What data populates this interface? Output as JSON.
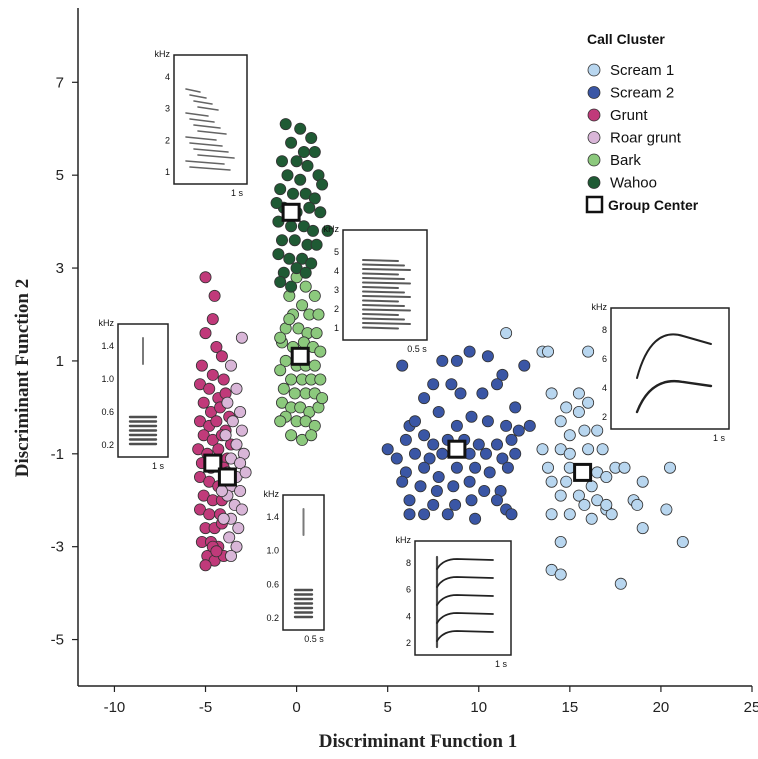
{
  "chart_data": {
    "type": "scatter",
    "xlabel": "Discriminant Function 1",
    "ylabel": "Discriminant Function 2",
    "xlim": [
      -12,
      25
    ],
    "ylim": [
      -6,
      8.6
    ],
    "x_ticks": [
      -10,
      -5,
      0,
      5,
      10,
      15,
      20,
      25
    ],
    "x_tick_labels": [
      "-10",
      "-5",
      "0",
      "5",
      "10",
      "15",
      "20",
      "25"
    ],
    "y_ticks": [
      -5,
      -3,
      -1,
      1,
      3,
      5,
      7
    ],
    "y_tick_labels": [
      "-5",
      "-3",
      "-1",
      "1",
      "3",
      "5",
      "7"
    ],
    "grid": false,
    "legend": {
      "title": "Call Cluster",
      "placement": "top-right",
      "group_center_label": "Group Center"
    },
    "series": [
      {
        "name": "Scream 1",
        "color": "#b8d6ef",
        "points": [
          [
            11.5,
            1.6
          ],
          [
            13.5,
            1.2
          ],
          [
            13.8,
            1.2
          ],
          [
            16.0,
            1.2
          ],
          [
            14.0,
            0.3
          ],
          [
            15.5,
            0.3
          ],
          [
            16.0,
            0.1
          ],
          [
            14.8,
            0.0
          ],
          [
            15.5,
            -0.1
          ],
          [
            14.5,
            -0.3
          ],
          [
            15.0,
            -0.6
          ],
          [
            16.5,
            -0.5
          ],
          [
            15.8,
            -0.5
          ],
          [
            13.5,
            -0.9
          ],
          [
            14.5,
            -0.9
          ],
          [
            15.0,
            -1.0
          ],
          [
            16.0,
            -0.9
          ],
          [
            16.8,
            -0.9
          ],
          [
            13.8,
            -1.3
          ],
          [
            15.0,
            -1.3
          ],
          [
            16.5,
            -1.4
          ],
          [
            17.5,
            -1.3
          ],
          [
            18.0,
            -1.3
          ],
          [
            20.5,
            -1.3
          ],
          [
            14.0,
            -1.6
          ],
          [
            14.8,
            -1.6
          ],
          [
            16.2,
            -1.7
          ],
          [
            17.0,
            -1.5
          ],
          [
            19.0,
            -1.6
          ],
          [
            14.5,
            -1.9
          ],
          [
            15.5,
            -1.9
          ],
          [
            15.8,
            -2.1
          ],
          [
            16.5,
            -2.0
          ],
          [
            17.0,
            -2.2
          ],
          [
            18.5,
            -2.0
          ],
          [
            14.0,
            -2.3
          ],
          [
            15.0,
            -2.3
          ],
          [
            16.2,
            -2.4
          ],
          [
            17.3,
            -2.3
          ],
          [
            18.7,
            -2.1
          ],
          [
            20.3,
            -2.2
          ],
          [
            17.0,
            -2.1
          ],
          [
            14.5,
            -2.9
          ],
          [
            19.0,
            -2.6
          ],
          [
            21.2,
            -2.9
          ],
          [
            14.0,
            -3.5
          ],
          [
            14.5,
            -3.6
          ],
          [
            17.8,
            -3.8
          ]
        ]
      },
      {
        "name": "Scream 2",
        "color": "#3a56a5",
        "points": [
          [
            5.8,
            0.9
          ],
          [
            6.2,
            -0.4
          ],
          [
            7.5,
            0.5
          ],
          [
            8.0,
            1.0
          ],
          [
            8.8,
            1.0
          ],
          [
            9.5,
            1.2
          ],
          [
            10.5,
            1.1
          ],
          [
            11.3,
            0.7
          ],
          [
            12.5,
            0.9
          ],
          [
            7.0,
            0.2
          ],
          [
            8.5,
            0.5
          ],
          [
            9.0,
            0.3
          ],
          [
            10.2,
            0.3
          ],
          [
            11.0,
            0.5
          ],
          [
            12.0,
            0.0
          ],
          [
            6.5,
            -0.3
          ],
          [
            7.8,
            -0.1
          ],
          [
            8.8,
            -0.4
          ],
          [
            9.6,
            -0.2
          ],
          [
            10.5,
            -0.3
          ],
          [
            11.5,
            -0.4
          ],
          [
            12.8,
            -0.4
          ],
          [
            5.0,
            -0.9
          ],
          [
            6.0,
            -0.7
          ],
          [
            7.0,
            -0.6
          ],
          [
            7.5,
            -0.8
          ],
          [
            8.3,
            -0.7
          ],
          [
            9.2,
            -0.7
          ],
          [
            10.0,
            -0.8
          ],
          [
            11.0,
            -0.8
          ],
          [
            11.8,
            -0.7
          ],
          [
            12.2,
            -0.5
          ],
          [
            5.5,
            -1.1
          ],
          [
            6.5,
            -1.0
          ],
          [
            7.3,
            -1.1
          ],
          [
            8.0,
            -1.0
          ],
          [
            9.5,
            -1.0
          ],
          [
            10.4,
            -1.0
          ],
          [
            11.3,
            -1.1
          ],
          [
            12.0,
            -1.0
          ],
          [
            6.0,
            -1.4
          ],
          [
            7.0,
            -1.3
          ],
          [
            7.8,
            -1.5
          ],
          [
            8.8,
            -1.3
          ],
          [
            9.8,
            -1.3
          ],
          [
            10.6,
            -1.4
          ],
          [
            11.6,
            -1.3
          ],
          [
            5.8,
            -1.6
          ],
          [
            6.8,
            -1.7
          ],
          [
            7.7,
            -1.8
          ],
          [
            8.6,
            -1.7
          ],
          [
            9.5,
            -1.6
          ],
          [
            10.3,
            -1.8
          ],
          [
            11.2,
            -1.8
          ],
          [
            6.2,
            -2.0
          ],
          [
            7.5,
            -2.1
          ],
          [
            8.7,
            -2.1
          ],
          [
            9.6,
            -2.0
          ],
          [
            11.0,
            -2.0
          ],
          [
            11.5,
            -2.2
          ],
          [
            6.2,
            -2.3
          ],
          [
            7.0,
            -2.3
          ],
          [
            8.3,
            -2.3
          ],
          [
            9.8,
            -2.4
          ],
          [
            11.8,
            -2.3
          ]
        ]
      },
      {
        "name": "Grunt",
        "color": "#c03a7a",
        "points": [
          [
            -5.0,
            2.8
          ],
          [
            -4.5,
            2.4
          ],
          [
            -4.6,
            1.9
          ],
          [
            -5.0,
            1.6
          ],
          [
            -4.4,
            1.3
          ],
          [
            -4.1,
            1.1
          ],
          [
            -5.2,
            0.9
          ],
          [
            -4.6,
            0.7
          ],
          [
            -4.0,
            0.6
          ],
          [
            -5.3,
            0.5
          ],
          [
            -4.8,
            0.4
          ],
          [
            -4.3,
            0.2
          ],
          [
            -3.9,
            0.3
          ],
          [
            -5.1,
            0.1
          ],
          [
            -4.7,
            -0.1
          ],
          [
            -4.2,
            0.0
          ],
          [
            -3.7,
            -0.2
          ],
          [
            -5.3,
            -0.3
          ],
          [
            -4.8,
            -0.4
          ],
          [
            -4.4,
            -0.3
          ],
          [
            -3.9,
            -0.5
          ],
          [
            -5.1,
            -0.6
          ],
          [
            -4.6,
            -0.7
          ],
          [
            -4.1,
            -0.6
          ],
          [
            -3.6,
            -0.8
          ],
          [
            -5.4,
            -0.9
          ],
          [
            -4.9,
            -1.0
          ],
          [
            -4.3,
            -0.9
          ],
          [
            -3.8,
            -1.1
          ],
          [
            -5.2,
            -1.2
          ],
          [
            -4.7,
            -1.3
          ],
          [
            -4.0,
            -1.3
          ],
          [
            -5.3,
            -1.5
          ],
          [
            -4.8,
            -1.6
          ],
          [
            -4.3,
            -1.7
          ],
          [
            -3.8,
            -1.6
          ],
          [
            -5.1,
            -1.9
          ],
          [
            -4.6,
            -2.0
          ],
          [
            -4.1,
            -2.0
          ],
          [
            -5.3,
            -2.2
          ],
          [
            -4.8,
            -2.3
          ],
          [
            -4.2,
            -2.3
          ],
          [
            -5.0,
            -2.6
          ],
          [
            -4.5,
            -2.6
          ],
          [
            -4.1,
            -2.5
          ],
          [
            -5.2,
            -2.9
          ],
          [
            -4.7,
            -2.9
          ],
          [
            -4.3,
            -3.0
          ],
          [
            -4.9,
            -3.2
          ],
          [
            -4.5,
            -3.3
          ],
          [
            -4.0,
            -3.2
          ],
          [
            -4.6,
            -3.0
          ],
          [
            -5.0,
            -3.4
          ],
          [
            -4.4,
            -3.1
          ]
        ]
      },
      {
        "name": "Roar grunt",
        "color": "#d9b6d8",
        "points": [
          [
            -3.0,
            1.5
          ],
          [
            -3.6,
            0.9
          ],
          [
            -3.3,
            0.4
          ],
          [
            -3.8,
            0.1
          ],
          [
            -3.1,
            -0.1
          ],
          [
            -3.5,
            -0.3
          ],
          [
            -3.0,
            -0.5
          ],
          [
            -3.9,
            -0.6
          ],
          [
            -3.3,
            -0.8
          ],
          [
            -2.9,
            -1.0
          ],
          [
            -3.6,
            -1.1
          ],
          [
            -3.1,
            -1.2
          ],
          [
            -3.8,
            -1.4
          ],
          [
            -3.3,
            -1.5
          ],
          [
            -2.8,
            -1.4
          ],
          [
            -3.6,
            -1.7
          ],
          [
            -3.1,
            -1.8
          ],
          [
            -3.8,
            -1.9
          ],
          [
            -3.4,
            -2.1
          ],
          [
            -3.0,
            -2.2
          ],
          [
            -3.6,
            -2.4
          ],
          [
            -3.2,
            -2.6
          ],
          [
            -3.7,
            -2.8
          ],
          [
            -3.3,
            -3.0
          ],
          [
            -3.6,
            -3.2
          ],
          [
            -4.0,
            -2.4
          ],
          [
            -4.1,
            -1.8
          ]
        ]
      },
      {
        "name": "Bark",
        "color": "#8cc97d",
        "points": [
          [
            0.0,
            2.8
          ],
          [
            0.5,
            2.6
          ],
          [
            1.0,
            2.4
          ],
          [
            -0.4,
            2.4
          ],
          [
            0.3,
            2.2
          ],
          [
            0.7,
            2.0
          ],
          [
            -0.2,
            2.0
          ],
          [
            1.2,
            2.0
          ],
          [
            -0.6,
            1.7
          ],
          [
            0.1,
            1.7
          ],
          [
            0.6,
            1.6
          ],
          [
            1.1,
            1.6
          ],
          [
            -0.8,
            1.4
          ],
          [
            -0.2,
            1.3
          ],
          [
            0.4,
            1.4
          ],
          [
            0.9,
            1.3
          ],
          [
            1.3,
            1.2
          ],
          [
            -0.6,
            1.0
          ],
          [
            0.0,
            0.9
          ],
          [
            0.5,
            0.9
          ],
          [
            1.0,
            0.9
          ],
          [
            -0.9,
            0.8
          ],
          [
            -0.3,
            0.6
          ],
          [
            0.3,
            0.6
          ],
          [
            0.8,
            0.6
          ],
          [
            1.3,
            0.6
          ],
          [
            -0.7,
            0.4
          ],
          [
            -0.1,
            0.3
          ],
          [
            0.5,
            0.3
          ],
          [
            1.0,
            0.3
          ],
          [
            -0.8,
            0.1
          ],
          [
            -0.3,
            0.0
          ],
          [
            0.2,
            0.0
          ],
          [
            0.7,
            -0.1
          ],
          [
            1.2,
            0.0
          ],
          [
            -0.6,
            -0.2
          ],
          [
            0.0,
            -0.3
          ],
          [
            0.5,
            -0.3
          ],
          [
            1.0,
            -0.4
          ],
          [
            -0.3,
            -0.6
          ],
          [
            0.3,
            -0.7
          ],
          [
            0.8,
            -0.6
          ],
          [
            -0.9,
            -0.3
          ],
          [
            -0.4,
            1.9
          ],
          [
            -0.9,
            1.5
          ],
          [
            1.4,
            0.2
          ]
        ]
      },
      {
        "name": "Wahoo",
        "color": "#1f5a34",
        "points": [
          [
            -0.6,
            6.1
          ],
          [
            0.2,
            6.0
          ],
          [
            0.8,
            5.8
          ],
          [
            -0.3,
            5.7
          ],
          [
            0.4,
            5.5
          ],
          [
            -0.8,
            5.3
          ],
          [
            1.0,
            5.5
          ],
          [
            0.0,
            5.3
          ],
          [
            0.6,
            5.2
          ],
          [
            -0.5,
            5.0
          ],
          [
            0.2,
            4.9
          ],
          [
            1.2,
            5.0
          ],
          [
            -0.9,
            4.7
          ],
          [
            -0.2,
            4.6
          ],
          [
            0.5,
            4.6
          ],
          [
            1.0,
            4.5
          ],
          [
            -0.7,
            4.3
          ],
          [
            0.0,
            4.2
          ],
          [
            0.7,
            4.3
          ],
          [
            1.3,
            4.2
          ],
          [
            -1.0,
            4.0
          ],
          [
            -0.3,
            3.9
          ],
          [
            0.4,
            3.9
          ],
          [
            0.9,
            3.8
          ],
          [
            -0.8,
            3.6
          ],
          [
            -0.1,
            3.6
          ],
          [
            0.6,
            3.5
          ],
          [
            1.1,
            3.5
          ],
          [
            -1.0,
            3.3
          ],
          [
            -0.4,
            3.2
          ],
          [
            0.3,
            3.2
          ],
          [
            0.8,
            3.1
          ],
          [
            -0.7,
            2.9
          ],
          [
            0.0,
            3.0
          ],
          [
            0.5,
            2.9
          ],
          [
            -0.9,
            2.7
          ],
          [
            -0.3,
            2.6
          ],
          [
            1.7,
            3.8
          ],
          [
            -1.1,
            4.4
          ],
          [
            1.4,
            4.8
          ]
        ]
      }
    ],
    "group_centers": [
      {
        "name": "Scream 1",
        "x": 15.7,
        "y": -1.4
      },
      {
        "name": "Scream 2",
        "x": 8.8,
        "y": -0.9
      },
      {
        "name": "Grunt",
        "x": -4.6,
        "y": -1.2
      },
      {
        "name": "Roar grunt",
        "x": -3.8,
        "y": -1.5
      },
      {
        "name": "Bark",
        "x": 0.2,
        "y": 1.1
      },
      {
        "name": "Wahoo",
        "x": -0.3,
        "y": 4.2
      }
    ],
    "insets": [
      {
        "unit": "kHz",
        "y_ticks": [
          "4",
          "3",
          "2",
          "1"
        ],
        "duration": "1 s"
      },
      {
        "unit": "kHz",
        "y_ticks": [
          "5",
          "4",
          "3",
          "2",
          "1"
        ],
        "duration": "0.5 s"
      },
      {
        "unit": "kHz",
        "y_ticks": [
          "1.4",
          "1.0",
          "0.6",
          "0.2"
        ],
        "duration": "1 s"
      },
      {
        "unit": "kHz",
        "y_ticks": [
          "1.4",
          "1.0",
          "0.6",
          "0.2"
        ],
        "duration": "0.5 s"
      },
      {
        "unit": "kHz",
        "y_ticks": [
          "8",
          "6",
          "4",
          "2"
        ],
        "duration": "1 s"
      },
      {
        "unit": "kHz",
        "y_ticks": [
          "8",
          "6",
          "4",
          "2"
        ],
        "duration": "1 s"
      }
    ]
  }
}
